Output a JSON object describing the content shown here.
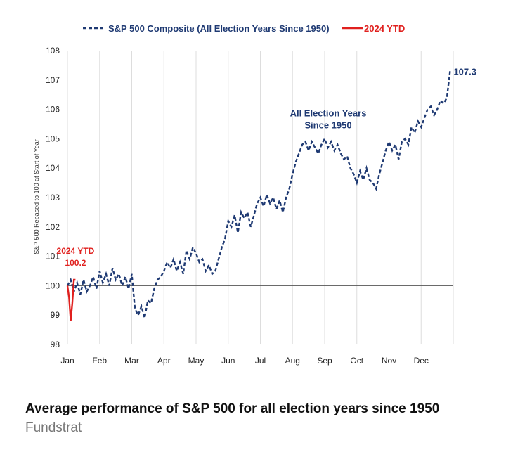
{
  "caption": {
    "title": "Average performance of S&P 500 for all election years since 1950",
    "source": "Fundstrat"
  },
  "chart_data": {
    "type": "line",
    "title": "",
    "xlabel": "",
    "ylabel": "S&P 500 Rebased to 100 at Start of Year",
    "ylim": [
      98,
      108
    ],
    "yticks": [
      "98",
      "99",
      "100",
      "101",
      "102",
      "103",
      "104",
      "105",
      "106",
      "107",
      "108"
    ],
    "xticks": [
      "Jan",
      "Feb",
      "Mar",
      "Apr",
      "May",
      "Jun",
      "Jul",
      "Aug",
      "Sep",
      "Oct",
      "Nov",
      "Dec"
    ],
    "xlim": [
      0,
      12
    ],
    "grid": {
      "vertical": true,
      "horizontal": false
    },
    "legend_position": "top",
    "baseline": 100,
    "colors": {
      "composite": "#1f3a73",
      "ytd": "#e0201e",
      "grid": "#dddddd",
      "baseline": "#555555"
    },
    "series": [
      {
        "name": "S&P 500 Composite (All Election Years Since 1950)",
        "style": "dashed",
        "x": [
          0.0,
          0.1,
          0.2,
          0.3,
          0.4,
          0.5,
          0.6,
          0.7,
          0.8,
          0.9,
          1.0,
          1.1,
          1.2,
          1.3,
          1.4,
          1.5,
          1.6,
          1.7,
          1.8,
          1.9,
          2.0,
          2.1,
          2.2,
          2.3,
          2.4,
          2.5,
          2.6,
          2.7,
          2.8,
          2.9,
          3.0,
          3.1,
          3.2,
          3.3,
          3.4,
          3.5,
          3.6,
          3.7,
          3.8,
          3.9,
          4.0,
          4.1,
          4.2,
          4.3,
          4.4,
          4.5,
          4.6,
          4.7,
          4.8,
          4.9,
          5.0,
          5.1,
          5.2,
          5.3,
          5.4,
          5.5,
          5.6,
          5.7,
          5.8,
          5.9,
          6.0,
          6.1,
          6.2,
          6.3,
          6.4,
          6.5,
          6.6,
          6.7,
          6.8,
          6.9,
          7.0,
          7.1,
          7.2,
          7.3,
          7.4,
          7.5,
          7.6,
          7.7,
          7.8,
          7.9,
          8.0,
          8.1,
          8.2,
          8.3,
          8.4,
          8.5,
          8.6,
          8.7,
          8.8,
          8.9,
          9.0,
          9.1,
          9.2,
          9.3,
          9.4,
          9.5,
          9.6,
          9.7,
          9.8,
          9.9,
          10.0,
          10.1,
          10.2,
          10.3,
          10.4,
          10.5,
          10.6,
          10.7,
          10.8,
          10.9,
          11.0,
          11.1,
          11.2,
          11.3,
          11.4,
          11.5,
          11.6,
          11.7,
          11.8,
          11.9
        ],
        "values": [
          100.0,
          100.2,
          99.8,
          100.1,
          99.7,
          100.2,
          99.8,
          100.0,
          100.3,
          99.9,
          100.5,
          100.1,
          100.4,
          100.0,
          100.6,
          100.2,
          100.4,
          100.0,
          100.3,
          99.9,
          100.4,
          99.2,
          99.0,
          99.3,
          98.9,
          99.5,
          99.4,
          99.9,
          100.2,
          100.3,
          100.5,
          100.8,
          100.6,
          100.9,
          100.5,
          100.8,
          100.4,
          101.2,
          100.9,
          101.3,
          101.1,
          100.8,
          100.9,
          100.5,
          100.7,
          100.4,
          100.5,
          100.9,
          101.3,
          101.6,
          102.2,
          102.0,
          102.4,
          101.8,
          102.5,
          102.3,
          102.5,
          102.0,
          102.4,
          102.8,
          103.0,
          102.7,
          103.1,
          102.8,
          103.0,
          102.6,
          102.9,
          102.5,
          103.0,
          103.3,
          103.8,
          104.2,
          104.5,
          104.8,
          104.9,
          104.6,
          104.9,
          104.7,
          104.5,
          104.8,
          105.0,
          104.7,
          104.9,
          104.6,
          104.8,
          104.5,
          104.3,
          104.4,
          104.0,
          103.8,
          103.5,
          103.9,
          103.6,
          104.0,
          103.6,
          103.5,
          103.3,
          103.8,
          104.2,
          104.6,
          104.9,
          104.6,
          104.8,
          104.3,
          104.9,
          105.0,
          104.8,
          105.4,
          105.2,
          105.6,
          105.4,
          105.7,
          106.0,
          106.1,
          105.8,
          106.0,
          106.3,
          106.2,
          106.4,
          107.3
        ]
      },
      {
        "name": "2024 YTD",
        "style": "solid",
        "x": [
          0.0,
          0.05,
          0.1,
          0.15,
          0.2,
          0.25
        ],
        "values": [
          100.0,
          99.6,
          98.8,
          99.4,
          100.2,
          100.2
        ]
      }
    ],
    "annotations": {
      "end_value": "107.3",
      "all_years_line1": "All Election Years",
      "all_years_line2": "Since 1950",
      "ytd_line1": "2024 YTD",
      "ytd_line2": "100.2"
    }
  }
}
